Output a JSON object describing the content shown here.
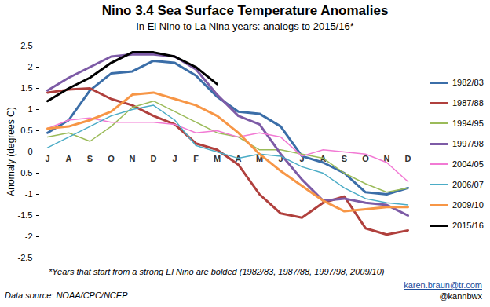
{
  "chart_data": {
    "type": "line",
    "title": "Nino 3.4 Sea Surface Temperature Anomalies",
    "subtitle": "In El Nino to La Nina years: analogs to 2015/16*",
    "y_label": "Anomaly (degrees C)",
    "footnote": "*Years that start from a strong El Nino are bolded (1982/83, 1987/88, 1997/98, 2009/10)",
    "source": "Data source: NOAA/CPC/NCEP",
    "credit": [
      "karen.braun@tr.com",
      "@kannbwx"
    ],
    "categories": [
      "J",
      "A",
      "S",
      "O",
      "N",
      "D",
      "J",
      "F",
      "M",
      "A",
      "M",
      "J",
      "J",
      "A",
      "S",
      "O",
      "N",
      "D"
    ],
    "ylim": [
      -2.5,
      2.5
    ],
    "yticks": [
      -2.5,
      -2,
      -1.5,
      -1,
      -0.5,
      0,
      0.5,
      1,
      1.5,
      2,
      2.5
    ],
    "grid": false,
    "legend": "right",
    "series": [
      {
        "name": "1982/83",
        "color": "#3b6ea8",
        "line_style": "bold",
        "values": [
          0.45,
          0.75,
          1.45,
          1.85,
          1.9,
          2.15,
          2.1,
          1.8,
          1.3,
          0.95,
          0.9,
          0.6,
          -0.1,
          -0.25,
          -0.5,
          -0.95,
          -1.0,
          -0.85
        ]
      },
      {
        "name": "1987/88",
        "color": "#b0403d",
        "line_style": "bold",
        "values": [
          1.4,
          1.47,
          1.5,
          1.25,
          1.1,
          0.85,
          0.65,
          0.2,
          0.05,
          -0.3,
          -1.0,
          -1.45,
          -1.55,
          -1.2,
          -1.05,
          -1.8,
          -1.95,
          -1.85
        ]
      },
      {
        "name": "1994/95",
        "color": "#9bbb59",
        "line_style": "solid",
        "values": [
          0.35,
          0.45,
          0.25,
          0.6,
          1.05,
          1.2,
          0.95,
          0.7,
          0.45,
          0.35,
          0.05,
          0.05,
          -0.05,
          -0.15,
          -0.5,
          -0.75,
          -0.95,
          -0.85
        ]
      },
      {
        "name": "1997/98",
        "color": "#7d5ba6",
        "line_style": "bold",
        "values": [
          1.45,
          1.75,
          2.0,
          2.25,
          2.3,
          2.3,
          2.25,
          1.95,
          1.35,
          0.85,
          0.65,
          -0.05,
          -0.65,
          -1.15,
          -1.1,
          -1.2,
          -1.25,
          -1.5
        ]
      },
      {
        "name": "2004/05",
        "color": "#f27ad4",
        "line_style": "solid",
        "values": [
          0.55,
          0.75,
          0.8,
          0.7,
          0.7,
          0.7,
          0.65,
          0.45,
          0.5,
          0.35,
          0.45,
          0.35,
          -0.1,
          0.05,
          0.0,
          -0.05,
          -0.25,
          -0.7
        ]
      },
      {
        "name": "2006/07",
        "color": "#4bacc6",
        "line_style": "solid",
        "values": [
          0.1,
          0.35,
          0.6,
          0.85,
          1.0,
          1.1,
          0.75,
          0.15,
          0.0,
          -0.15,
          -0.05,
          -0.1,
          -0.35,
          -0.5,
          -0.85,
          -1.1,
          -1.2,
          -1.25
        ]
      },
      {
        "name": "2009/10",
        "color": "#f79646",
        "line_style": "bold",
        "values": [
          0.55,
          0.6,
          0.75,
          0.95,
          1.35,
          1.4,
          1.25,
          1.1,
          0.85,
          0.45,
          -0.05,
          -0.45,
          -0.8,
          -1.15,
          -1.4,
          -1.35,
          -1.3,
          -1.3
        ]
      },
      {
        "name": "2015/16",
        "color": "#000000",
        "line_style": "bold",
        "values": [
          1.2,
          1.5,
          1.75,
          2.1,
          2.35,
          2.35,
          2.25,
          2.0,
          1.6,
          null,
          null,
          null,
          null,
          null,
          null,
          null,
          null,
          null
        ]
      }
    ]
  }
}
